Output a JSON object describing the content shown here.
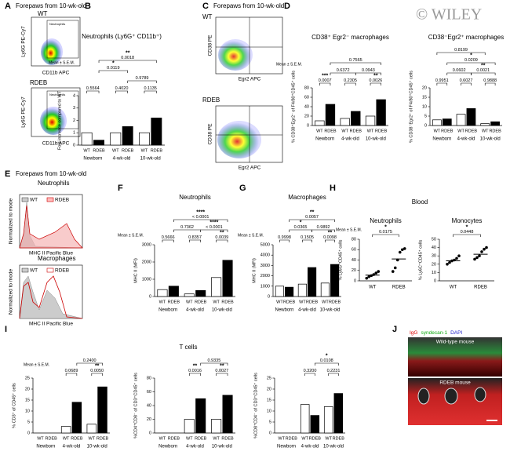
{
  "figure": {
    "panel_letters": [
      "A",
      "B",
      "C",
      "D",
      "E",
      "F",
      "G",
      "H",
      "I",
      "J"
    ],
    "watermark": "© WILEY",
    "A": {
      "title": "Forepaws from 10-wk-old",
      "labels": [
        "WT",
        "RDEB"
      ],
      "gate": "Neutrophils",
      "ylabel": "Ly6G PE-Cy7",
      "xlabel": "CD11b APC"
    },
    "C": {
      "title": "Forepaws from 10-wk-old",
      "labels": [
        "WT",
        "RDEB"
      ],
      "ylabel": "CD38 PE",
      "xlabel": "Egr2 APC"
    },
    "E": {
      "title": "Forepaws from 10-wk-old",
      "panels": [
        "Neutrophils",
        "Macrophages"
      ],
      "legend": [
        "WT",
        "RDEB"
      ],
      "ylabel": "Normalized to mode",
      "xlabel": "MHC II Pacific Blue"
    },
    "H": {
      "title": "Blood"
    },
    "J": {
      "stains": [
        "IgG",
        "syndecan-1",
        "DAPI"
      ],
      "labels": [
        "Wild-type mouse",
        "RDEB mouse"
      ]
    }
  },
  "chart_data": [
    {
      "type": "bar",
      "title": "Neutrophils (Ly6G⁺ CD11b⁺)",
      "note": "Mean ± S.E.M.",
      "ylabel": "Fold increase compared to WT",
      "categories": [
        "Newborn",
        "4-wk-old",
        "10-wk-old"
      ],
      "series": [
        {
          "name": "WT",
          "color": "#ffffff",
          "values": [
            1,
            1,
            1
          ]
        },
        {
          "name": "RDEB",
          "color": "#000000",
          "values": [
            0.4,
            1.5,
            2.2
          ]
        }
      ],
      "ylim": [
        0,
        4
      ],
      "yticks": [
        0,
        1,
        2,
        3,
        4
      ],
      "annotations": [
        {
          "p": "0.5564"
        },
        {
          "p": "0.4020"
        },
        {
          "p": "0.1135"
        },
        {
          "p": "0.9789"
        },
        {
          "stars": "*",
          "p": "0.0119"
        },
        {
          "stars": "**",
          "p": "0.0018"
        }
      ]
    },
    {
      "type": "bar",
      "title": "CD38⁺ Egr2⁻ macrophages",
      "note": "Mean ± S.E.M.",
      "ylabel": "% CD38⁺Egr2⁻ of F4/80⁺CD45⁺ cells",
      "categories": [
        "Newborn",
        "4-wk-old",
        "10-wk-old"
      ],
      "series": [
        {
          "name": "WT",
          "color": "#ffffff",
          "values": [
            10,
            15,
            20
          ]
        },
        {
          "name": "RDEB",
          "color": "#000000",
          "values": [
            45,
            30,
            55
          ]
        }
      ],
      "ylim": [
        0,
        80
      ],
      "yticks": [
        0,
        20,
        40,
        60,
        80
      ],
      "annotations": [
        {
          "stars": "***",
          "p": "0.0007"
        },
        {
          "p": "0.2305"
        },
        {
          "stars": "**",
          "p": "0.0026"
        },
        {
          "p": "0.6372"
        },
        {
          "p": "0.0943"
        },
        {
          "p": "0.7565"
        }
      ]
    },
    {
      "type": "bar",
      "title": "CD38⁻Egr2⁺ macrophages",
      "ylabel": "% CD38⁻Egr2⁺ of F4/80⁺CD45⁺ cells",
      "categories": [
        "Newborn",
        "4-wk-old",
        "10-wk-old"
      ],
      "series": [
        {
          "name": "WT",
          "color": "#ffffff",
          "values": [
            3,
            6,
            1
          ]
        },
        {
          "name": "RDEB",
          "color": "#000000",
          "values": [
            3.5,
            9,
            2
          ]
        }
      ],
      "ylim": [
        0,
        20
      ],
      "yticks": [
        0,
        5,
        10,
        15,
        20
      ],
      "annotations": [
        {
          "p": "0.9951"
        },
        {
          "p": "0.6027"
        },
        {
          "p": "0.9888"
        },
        {
          "p": "0.0602"
        },
        {
          "stars": "**",
          "p": "0.0021"
        },
        {
          "stars": "*",
          "p": "0.0209"
        },
        {
          "p": "0.8199"
        }
      ]
    },
    {
      "type": "bar",
      "title": "Neutrophils",
      "note": "Mean ± S.E.M.",
      "ylabel": "MHC II (MFI)",
      "categories": [
        "Newborn",
        "4-wk-old",
        "10-wk-old"
      ],
      "series": [
        {
          "name": "WT",
          "color": "#ffffff",
          "values": [
            400,
            150,
            1100
          ]
        },
        {
          "name": "RDEB",
          "color": "#000000",
          "values": [
            600,
            350,
            2100
          ]
        }
      ],
      "ylim": [
        0,
        3000
      ],
      "yticks": [
        0,
        1000,
        2000,
        3000
      ],
      "annotations": [
        {
          "p": "0.5666"
        },
        {
          "p": "0.8357"
        },
        {
          "stars": "**",
          "p": "0.0039"
        },
        {
          "p": "0.7362"
        },
        {
          "stars": "****",
          "p": "< 0.0001"
        },
        {
          "stars": "****",
          "p": "< 0.0001"
        }
      ]
    },
    {
      "type": "bar",
      "title": "Macrophages",
      "note": "Mean ± S.E.M.",
      "ylabel": "MHC II (MFI)",
      "categories": [
        "Newborn",
        "4-wk-old",
        "10-wk-old"
      ],
      "series": [
        {
          "name": "WT",
          "color": "#ffffff",
          "values": [
            1000,
            1200,
            1300
          ]
        },
        {
          "name": "RDEB",
          "color": "#000000",
          "values": [
            900,
            2800,
            3100
          ]
        }
      ],
      "ylim": [
        0,
        5000
      ],
      "yticks": [
        0,
        1000,
        2000,
        3000,
        4000,
        5000
      ],
      "annotations": [
        {
          "p": "0.9998"
        },
        {
          "p": "0.1505"
        },
        {
          "stars": "**",
          "p": "0.0098"
        },
        {
          "stars": "*",
          "p": "0.0365"
        },
        {
          "p": "0.9892"
        },
        {
          "stars": "**",
          "p": "0.0057"
        }
      ]
    },
    {
      "type": "dot",
      "title": "Neutrophils",
      "note": "Mean ± S.E.M.",
      "ylabel": "% Ly6G⁺CD45⁺ cells",
      "categories": [
        "WT",
        "RDEB"
      ],
      "values": [
        11,
        42
      ],
      "points": [
        [
          5,
          8,
          10,
          12,
          15,
          18
        ],
        [
          18,
          25,
          40,
          55,
          60,
          62
        ]
      ],
      "color": "#000000",
      "ylim": [
        0,
        80
      ],
      "yticks": [
        0,
        20,
        40,
        60,
        80
      ],
      "annotations": [
        {
          "stars": "*",
          "p": "0.0175"
        }
      ]
    },
    {
      "type": "dot",
      "title": "Monocytes",
      "ylabel": "% Ly6C⁺CD45⁺ cells",
      "categories": [
        "WT",
        "RDEB"
      ],
      "values": [
        24,
        32
      ],
      "points": [
        [
          20,
          22,
          24,
          25,
          27,
          30
        ],
        [
          26,
          28,
          30,
          35,
          38,
          40
        ]
      ],
      "color": "#000000",
      "ylim": [
        0,
        50
      ],
      "yticks": [
        0,
        10,
        20,
        30,
        40,
        50
      ],
      "annotations": [
        {
          "stars": "*",
          "p": "0.0448"
        }
      ]
    },
    {
      "type": "bar",
      "note": "Mean ± S.E.M.",
      "ylabel": "% CD3⁺ of CD45⁺ cells",
      "categories": [
        "Newborn",
        "4-wk-old",
        "10-wk-old"
      ],
      "series": [
        {
          "name": "WT",
          "color": "#ffffff",
          "values": [
            null,
            3,
            4
          ]
        },
        {
          "name": "RDEB",
          "color": "#000000",
          "values": [
            null,
            14,
            21
          ]
        }
      ],
      "ylim": [
        0,
        25
      ],
      "yticks": [
        0,
        5,
        10,
        15,
        20,
        25
      ],
      "annotations": [
        {
          "p": "0.0689"
        },
        {
          "stars": "**",
          "p": "0.0050"
        },
        {
          "p": "0.2400"
        }
      ]
    },
    {
      "type": "bar",
      "title": "T cells",
      "ylabel": "%CD4⁺CD8⁻ of CD3⁺CD45⁺ cells",
      "categories": [
        "Newborn",
        "4-wk-old",
        "10-wk-old"
      ],
      "series": [
        {
          "name": "WT",
          "color": "#ffffff",
          "values": [
            null,
            20,
            20
          ]
        },
        {
          "name": "RDEB",
          "color": "#000000",
          "values": [
            null,
            50,
            55
          ]
        }
      ],
      "ylim": [
        0,
        80
      ],
      "yticks": [
        0,
        20,
        40,
        60,
        80
      ],
      "annotations": [
        {
          "stars": "**",
          "p": "0.0016"
        },
        {
          "stars": "**",
          "p": "0.0027"
        },
        {
          "p": "0.9335"
        }
      ]
    },
    {
      "type": "bar",
      "ylabel": "%CD8⁺CD4⁻ of CD3⁺CD45⁺ cells",
      "categories": [
        "Newborn",
        "4-wk-old",
        "10-wk-old"
      ],
      "series": [
        {
          "name": "WT",
          "color": "#ffffff",
          "values": [
            null,
            13,
            12
          ]
        },
        {
          "name": "RDEB",
          "color": "#000000",
          "values": [
            null,
            8,
            18
          ]
        }
      ],
      "ylim": [
        0,
        25
      ],
      "yticks": [
        0,
        5,
        10,
        15,
        20,
        25
      ],
      "annotations": [
        {
          "p": "0.3200"
        },
        {
          "p": "0.2231"
        },
        {
          "stars": "*",
          "p": "0.0108"
        }
      ]
    }
  ]
}
